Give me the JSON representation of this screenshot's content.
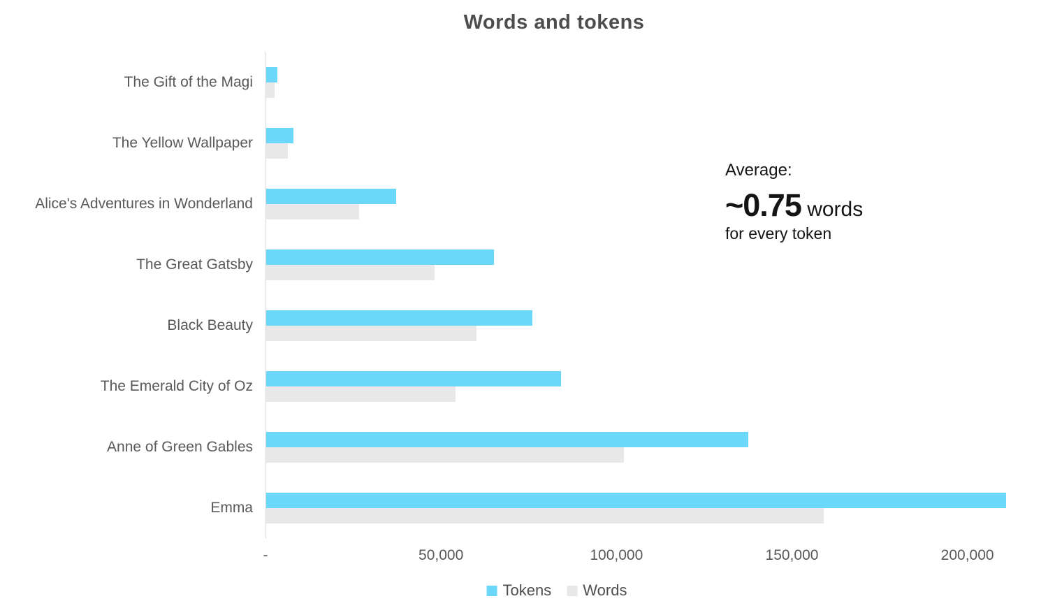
{
  "chart_data": {
    "type": "bar",
    "orientation": "horizontal",
    "title": "Words and tokens",
    "categories": [
      "The Gift of the Magi",
      "The Yellow Wallpaper",
      "Alice's Adventures in Wonderland",
      "The Great Gatsby",
      "Black Beauty",
      "The Emerald City of Oz",
      "Anne of Green Gables",
      "Emma"
    ],
    "series": [
      {
        "name": "Tokens",
        "color": "#6bd8f9",
        "values": [
          3200,
          7800,
          37000,
          65000,
          76000,
          84000,
          137500,
          211000
        ]
      },
      {
        "name": "Words",
        "color": "#e8e8e8",
        "values": [
          2400,
          6200,
          26500,
          48000,
          60000,
          54000,
          102000,
          159000
        ]
      }
    ],
    "x_axis": {
      "min": 0,
      "max": 215000,
      "ticks": [
        {
          "value": 0,
          "label": "-"
        },
        {
          "value": 50000,
          "label": "50,000"
        },
        {
          "value": 100000,
          "label": "100,000"
        },
        {
          "value": 150000,
          "label": "150,000"
        },
        {
          "value": 200000,
          "label": "200,000"
        }
      ]
    },
    "grid": "off",
    "legend_position": "bottom",
    "annotation": {
      "line1": "Average:",
      "big_number": "~0.75",
      "big_suffix": " words",
      "line3": "for every token"
    },
    "colors": {
      "title_text": "#4d4d4d",
      "label_text": "#595959",
      "annotation_text": "#141414",
      "axis_line": "#d8d8d8"
    }
  }
}
